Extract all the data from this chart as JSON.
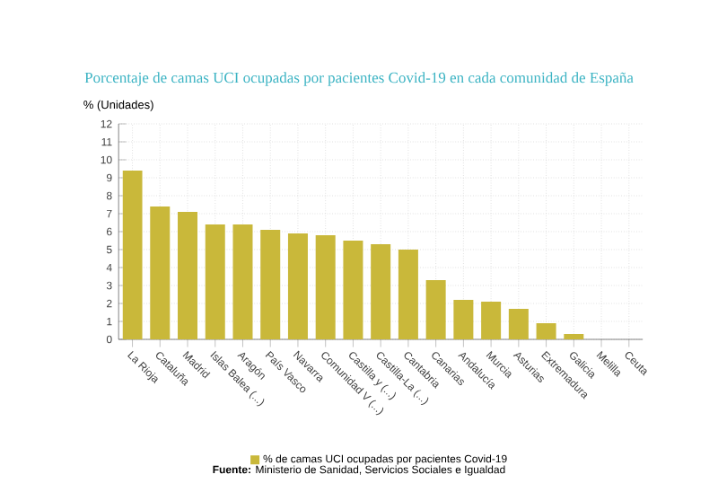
{
  "chart_data": {
    "type": "bar",
    "title": "Porcentaje de camas UCI ocupadas por pacientes Covid-19 en cada comunidad de España",
    "ylabel": "% (Unidades)",
    "categories": [
      "La Rioja",
      "Cataluña",
      "Madrid",
      "Islas Balea (...)",
      "Aragón",
      "País Vasco",
      "Navarra",
      "Comunidad V (...)",
      "Castilla y (...)",
      "Castilla-La (...)",
      "Cantabria",
      "Canarias",
      "Andalucía",
      "Murcia",
      "Asturias",
      "Extremadura",
      "Galicia",
      "Melilla",
      "Ceuta"
    ],
    "series": [
      {
        "name": "% de camas UCI ocupadas por pacientes Covid-19",
        "color": "#c9b83a",
        "values": [
          9.4,
          7.4,
          7.1,
          6.4,
          6.4,
          6.1,
          5.9,
          5.8,
          5.5,
          5.3,
          5.0,
          3.3,
          2.2,
          2.1,
          1.7,
          0.9,
          0.3,
          0,
          0
        ]
      }
    ],
    "ylim": [
      0,
      12
    ],
    "yticks": [
      0,
      1,
      2,
      3,
      4,
      5,
      6,
      7,
      8,
      9,
      10,
      11,
      12
    ],
    "grid": true,
    "legend": "bottom",
    "annotations": [
      "**Fuente:** Ministerio de Sanidad, Servicios Sociales e Igualdad"
    ]
  }
}
